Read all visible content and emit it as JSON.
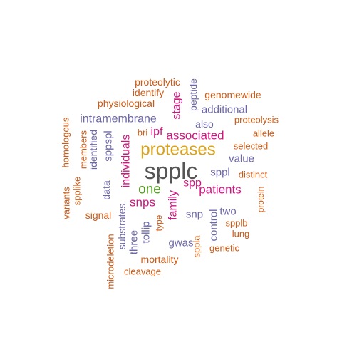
{
  "palette": {
    "dark_grey": "#555555",
    "orange": "#d9a21b",
    "green": "#4f9a1d",
    "magenta": "#d3137f",
    "purple": "#6b66a6",
    "dark_orange": "#cc5a14"
  },
  "words": [
    {
      "text": "spplc",
      "color": "dark_grey"
    },
    {
      "text": "proteases",
      "color": "orange"
    },
    {
      "text": "one",
      "color": "green"
    },
    {
      "text": "associated",
      "color": "magenta"
    },
    {
      "text": "patients",
      "color": "magenta"
    },
    {
      "text": "individuals",
      "color": "magenta"
    },
    {
      "text": "family",
      "color": "magenta"
    },
    {
      "text": "snps",
      "color": "magenta"
    },
    {
      "text": "spp",
      "color": "magenta"
    },
    {
      "text": "ipf",
      "color": "magenta"
    },
    {
      "text": "stage",
      "color": "magenta"
    },
    {
      "text": "intramembrane",
      "color": "purple"
    },
    {
      "text": "sppspl",
      "color": "purple"
    },
    {
      "text": "additional",
      "color": "purple"
    },
    {
      "text": "also",
      "color": "purple"
    },
    {
      "text": "value",
      "color": "purple"
    },
    {
      "text": "sppl",
      "color": "purple"
    },
    {
      "text": "snp",
      "color": "purple"
    },
    {
      "text": "two",
      "color": "purple"
    },
    {
      "text": "control",
      "color": "purple"
    },
    {
      "text": "gwas",
      "color": "purple"
    },
    {
      "text": "tollip",
      "color": "purple"
    },
    {
      "text": "three",
      "color": "purple"
    },
    {
      "text": "substrates",
      "color": "purple"
    },
    {
      "text": "data",
      "color": "purple"
    },
    {
      "text": "identified",
      "color": "purple"
    },
    {
      "text": "peptide",
      "color": "purple"
    },
    {
      "text": "proteolytic",
      "color": "dark_orange"
    },
    {
      "text": "identify",
      "color": "dark_orange"
    },
    {
      "text": "physiological",
      "color": "dark_orange"
    },
    {
      "text": "genomewide",
      "color": "dark_orange"
    },
    {
      "text": "proteolysis",
      "color": "dark_orange"
    },
    {
      "text": "allele",
      "color": "dark_orange"
    },
    {
      "text": "selected",
      "color": "dark_orange"
    },
    {
      "text": "distinct",
      "color": "dark_orange"
    },
    {
      "text": "protein",
      "color": "dark_orange"
    },
    {
      "text": "spplb",
      "color": "dark_orange"
    },
    {
      "text": "lung",
      "color": "dark_orange"
    },
    {
      "text": "genetic",
      "color": "dark_orange"
    },
    {
      "text": "sppla",
      "color": "dark_orange"
    },
    {
      "text": "mortality",
      "color": "dark_orange"
    },
    {
      "text": "cleavage",
      "color": "dark_orange"
    },
    {
      "text": "microdeletion",
      "color": "dark_orange"
    },
    {
      "text": "type",
      "color": "dark_orange"
    },
    {
      "text": "signal",
      "color": "dark_orange"
    },
    {
      "text": "spplike",
      "color": "dark_orange"
    },
    {
      "text": "variants",
      "color": "dark_orange"
    },
    {
      "text": "homologous",
      "color": "dark_orange"
    },
    {
      "text": "members",
      "color": "dark_orange"
    },
    {
      "text": "bri",
      "color": "dark_orange"
    }
  ]
}
